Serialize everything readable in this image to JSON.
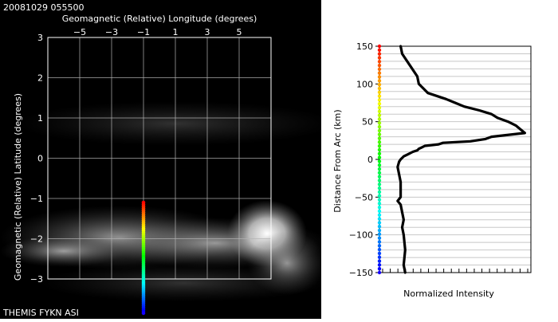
{
  "header": {
    "timestamp": "20081029 055500",
    "footer_label": "THEMIS FYKN ASI"
  },
  "chart_data": [
    {
      "type": "image",
      "xlabel": "Geomagnetic (Relative) Longitude (degrees)",
      "ylabel": "Geomagnetic (Relative) Latitude (degrees)",
      "xlim": [
        -7,
        7
      ],
      "ylim": [
        -3,
        3
      ],
      "x_ticks": [
        -5,
        -3,
        -1,
        1,
        3,
        5
      ],
      "y_ticks": [
        3,
        2,
        1,
        0,
        -1,
        -2,
        -3
      ],
      "grid": true,
      "colors": {
        "background": "#000000",
        "frame": "#ffffff",
        "grid": "#b4b4b4"
      },
      "sample_line": {
        "x": -1,
        "y_from": -1.1,
        "y_to": -3.85
      }
    },
    {
      "type": "line",
      "xlabel": "Normalized Intensity",
      "ylabel": "Distance From Arc (km)",
      "xlim": [
        0,
        1
      ],
      "ylim": [
        -150,
        150
      ],
      "y_ticks": [
        150,
        100,
        50,
        0,
        -50,
        -100,
        -150
      ],
      "grid": true,
      "colors": {
        "line": "#000000",
        "grid": "#c8c8c8"
      },
      "series": [
        {
          "y": [
            150,
            140,
            125,
            110,
            100,
            92,
            88,
            80,
            75,
            70,
            65,
            60,
            55,
            50,
            45,
            40,
            35,
            30,
            27,
            24,
            22,
            20,
            18,
            16,
            14,
            12,
            10,
            7,
            4,
            0,
            -3,
            -10,
            -20,
            -30,
            -40,
            -50,
            -55,
            -60,
            -70,
            -80,
            -90,
            -100,
            -120,
            -140,
            -150
          ],
          "x": [
            0.14,
            0.15,
            0.2,
            0.25,
            0.26,
            0.3,
            0.32,
            0.44,
            0.5,
            0.56,
            0.66,
            0.74,
            0.78,
            0.85,
            0.9,
            0.93,
            0.96,
            0.74,
            0.7,
            0.6,
            0.42,
            0.39,
            0.3,
            0.28,
            0.26,
            0.25,
            0.22,
            0.19,
            0.16,
            0.14,
            0.13,
            0.12,
            0.13,
            0.14,
            0.14,
            0.14,
            0.12,
            0.14,
            0.15,
            0.16,
            0.15,
            0.16,
            0.17,
            0.16,
            0.17
          ]
        }
      ]
    }
  ]
}
